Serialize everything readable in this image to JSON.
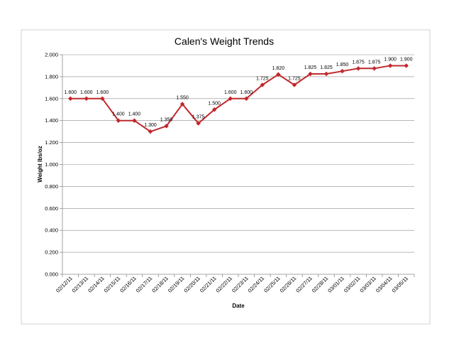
{
  "chart_data": {
    "type": "line",
    "title": "Calen's Weight Trends",
    "xlabel": "Date",
    "ylabel": "Weight lbs/oz",
    "ylim": [
      0,
      2
    ],
    "y_ticks": [
      "0.000",
      "0.200",
      "0.400",
      "0.600",
      "0.800",
      "1.000",
      "1.200",
      "1.400",
      "1.600",
      "1.800",
      "2.000"
    ],
    "grid": true,
    "legend": "none",
    "line_color": "#c0282c",
    "categories": [
      "02/12/11",
      "02/13/11",
      "02/14/11",
      "02/15/11",
      "02/16/11",
      "02/17/11",
      "02/18/11",
      "02/19/11",
      "02/20/11",
      "02/21/11",
      "02/22/11",
      "02/23/11",
      "02/24/11",
      "02/25/11",
      "02/26/11",
      "02/27/11",
      "02/28/11",
      "03/01/11",
      "03/02/11",
      "03/03/11",
      "03/04/11",
      "03/05/11"
    ],
    "values": [
      1.6,
      1.6,
      1.6,
      1.4,
      1.4,
      1.3,
      1.35,
      1.55,
      1.375,
      1.5,
      1.6,
      1.6,
      1.725,
      1.82,
      1.725,
      1.825,
      1.825,
      1.85,
      1.875,
      1.875,
      1.9,
      1.9
    ],
    "data_labels": [
      "1.600",
      "1.600",
      "1.600",
      "1.400",
      "1.400",
      "1.300",
      "1.350",
      "1.550",
      "1.375",
      "1.500",
      "1.600",
      "1.600",
      "1.725",
      "1.820",
      "1.725",
      "1.825",
      "1.825",
      "1.850",
      "1.875",
      "1.875",
      "1.900",
      "1.900"
    ]
  }
}
